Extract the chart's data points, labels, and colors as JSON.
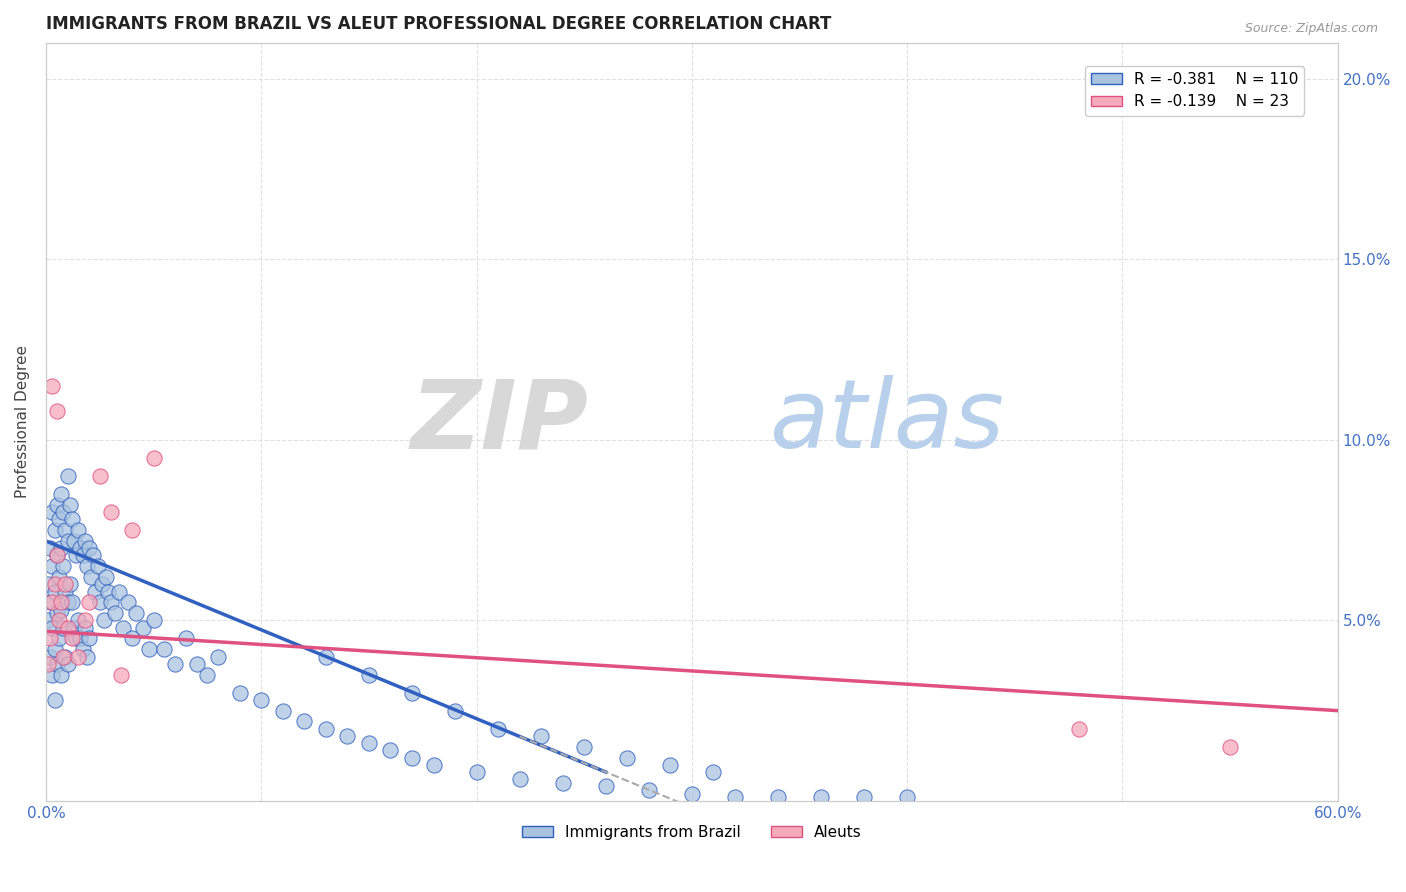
{
  "title": "IMMIGRANTS FROM BRAZIL VS ALEUT PROFESSIONAL DEGREE CORRELATION CHART",
  "source": "Source: ZipAtlas.com",
  "ylabel": "Professional Degree",
  "series1_label": "Immigrants from Brazil",
  "series2_label": "Aleuts",
  "series1_R": -0.381,
  "series1_N": 110,
  "series2_R": -0.139,
  "series2_N": 23,
  "series1_color": "#aac4e0",
  "series2_color": "#f4aaba",
  "series1_line_color": "#3060c0",
  "series2_line_color": "#e05080",
  "trend_dash_color": "#aaaaaa",
  "xmin": 0.0,
  "xmax": 0.6,
  "ymin": 0.0,
  "ymax": 0.21,
  "yticks": [
    0.0,
    0.05,
    0.1,
    0.15,
    0.2
  ],
  "ytick_labels": [
    "",
    "5.0%",
    "10.0%",
    "15.0%",
    "20.0%"
  ],
  "xticks": [
    0.0,
    0.1,
    0.2,
    0.3,
    0.4,
    0.5,
    0.6
  ],
  "xtick_labels": [
    "0.0%",
    "",
    "",
    "",
    "",
    "",
    "60.0%"
  ],
  "background_color": "#ffffff",
  "grid_color": "#e0e0e0",
  "series1_x": [
    0.001,
    0.001,
    0.002,
    0.002,
    0.002,
    0.003,
    0.003,
    0.003,
    0.003,
    0.004,
    0.004,
    0.004,
    0.004,
    0.005,
    0.005,
    0.005,
    0.005,
    0.006,
    0.006,
    0.006,
    0.007,
    0.007,
    0.007,
    0.007,
    0.008,
    0.008,
    0.008,
    0.009,
    0.009,
    0.009,
    0.01,
    0.01,
    0.01,
    0.01,
    0.011,
    0.011,
    0.012,
    0.012,
    0.013,
    0.013,
    0.014,
    0.014,
    0.015,
    0.015,
    0.016,
    0.016,
    0.017,
    0.017,
    0.018,
    0.018,
    0.019,
    0.019,
    0.02,
    0.02,
    0.021,
    0.022,
    0.023,
    0.024,
    0.025,
    0.026,
    0.027,
    0.028,
    0.029,
    0.03,
    0.032,
    0.034,
    0.036,
    0.038,
    0.04,
    0.042,
    0.045,
    0.048,
    0.05,
    0.055,
    0.06,
    0.065,
    0.07,
    0.075,
    0.08,
    0.09,
    0.1,
    0.11,
    0.12,
    0.13,
    0.14,
    0.15,
    0.16,
    0.17,
    0.18,
    0.2,
    0.22,
    0.24,
    0.26,
    0.28,
    0.3,
    0.32,
    0.34,
    0.36,
    0.38,
    0.4,
    0.13,
    0.15,
    0.17,
    0.19,
    0.21,
    0.23,
    0.25,
    0.27,
    0.29,
    0.31
  ],
  "series1_y": [
    0.06,
    0.05,
    0.07,
    0.055,
    0.04,
    0.08,
    0.065,
    0.048,
    0.035,
    0.075,
    0.058,
    0.042,
    0.028,
    0.082,
    0.068,
    0.052,
    0.038,
    0.078,
    0.062,
    0.045,
    0.085,
    0.07,
    0.053,
    0.035,
    0.08,
    0.065,
    0.048,
    0.075,
    0.058,
    0.04,
    0.09,
    0.072,
    0.055,
    0.038,
    0.082,
    0.06,
    0.078,
    0.055,
    0.072,
    0.048,
    0.068,
    0.045,
    0.075,
    0.05,
    0.07,
    0.045,
    0.068,
    0.042,
    0.072,
    0.048,
    0.065,
    0.04,
    0.07,
    0.045,
    0.062,
    0.068,
    0.058,
    0.065,
    0.055,
    0.06,
    0.05,
    0.062,
    0.058,
    0.055,
    0.052,
    0.058,
    0.048,
    0.055,
    0.045,
    0.052,
    0.048,
    0.042,
    0.05,
    0.042,
    0.038,
    0.045,
    0.038,
    0.035,
    0.04,
    0.03,
    0.028,
    0.025,
    0.022,
    0.02,
    0.018,
    0.016,
    0.014,
    0.012,
    0.01,
    0.008,
    0.006,
    0.005,
    0.004,
    0.003,
    0.002,
    0.001,
    0.001,
    0.001,
    0.001,
    0.001,
    0.04,
    0.035,
    0.03,
    0.025,
    0.02,
    0.018,
    0.015,
    0.012,
    0.01,
    0.008
  ],
  "series2_x": [
    0.001,
    0.002,
    0.003,
    0.003,
    0.004,
    0.005,
    0.005,
    0.006,
    0.007,
    0.008,
    0.009,
    0.01,
    0.012,
    0.015,
    0.018,
    0.02,
    0.025,
    0.03,
    0.035,
    0.04,
    0.05,
    0.48,
    0.55
  ],
  "series2_y": [
    0.038,
    0.045,
    0.115,
    0.055,
    0.06,
    0.108,
    0.068,
    0.05,
    0.055,
    0.04,
    0.06,
    0.048,
    0.045,
    0.04,
    0.05,
    0.055,
    0.09,
    0.08,
    0.035,
    0.075,
    0.095,
    0.02,
    0.015
  ],
  "trend1_x0": 0.0,
  "trend1_y0": 0.072,
  "trend1_x1": 0.26,
  "trend1_y1": 0.008,
  "trend1_dash_x0": 0.22,
  "trend1_dash_x1": 0.42,
  "trend2_x0": 0.0,
  "trend2_y0": 0.047,
  "trend2_x1": 0.6,
  "trend2_y1": 0.025
}
